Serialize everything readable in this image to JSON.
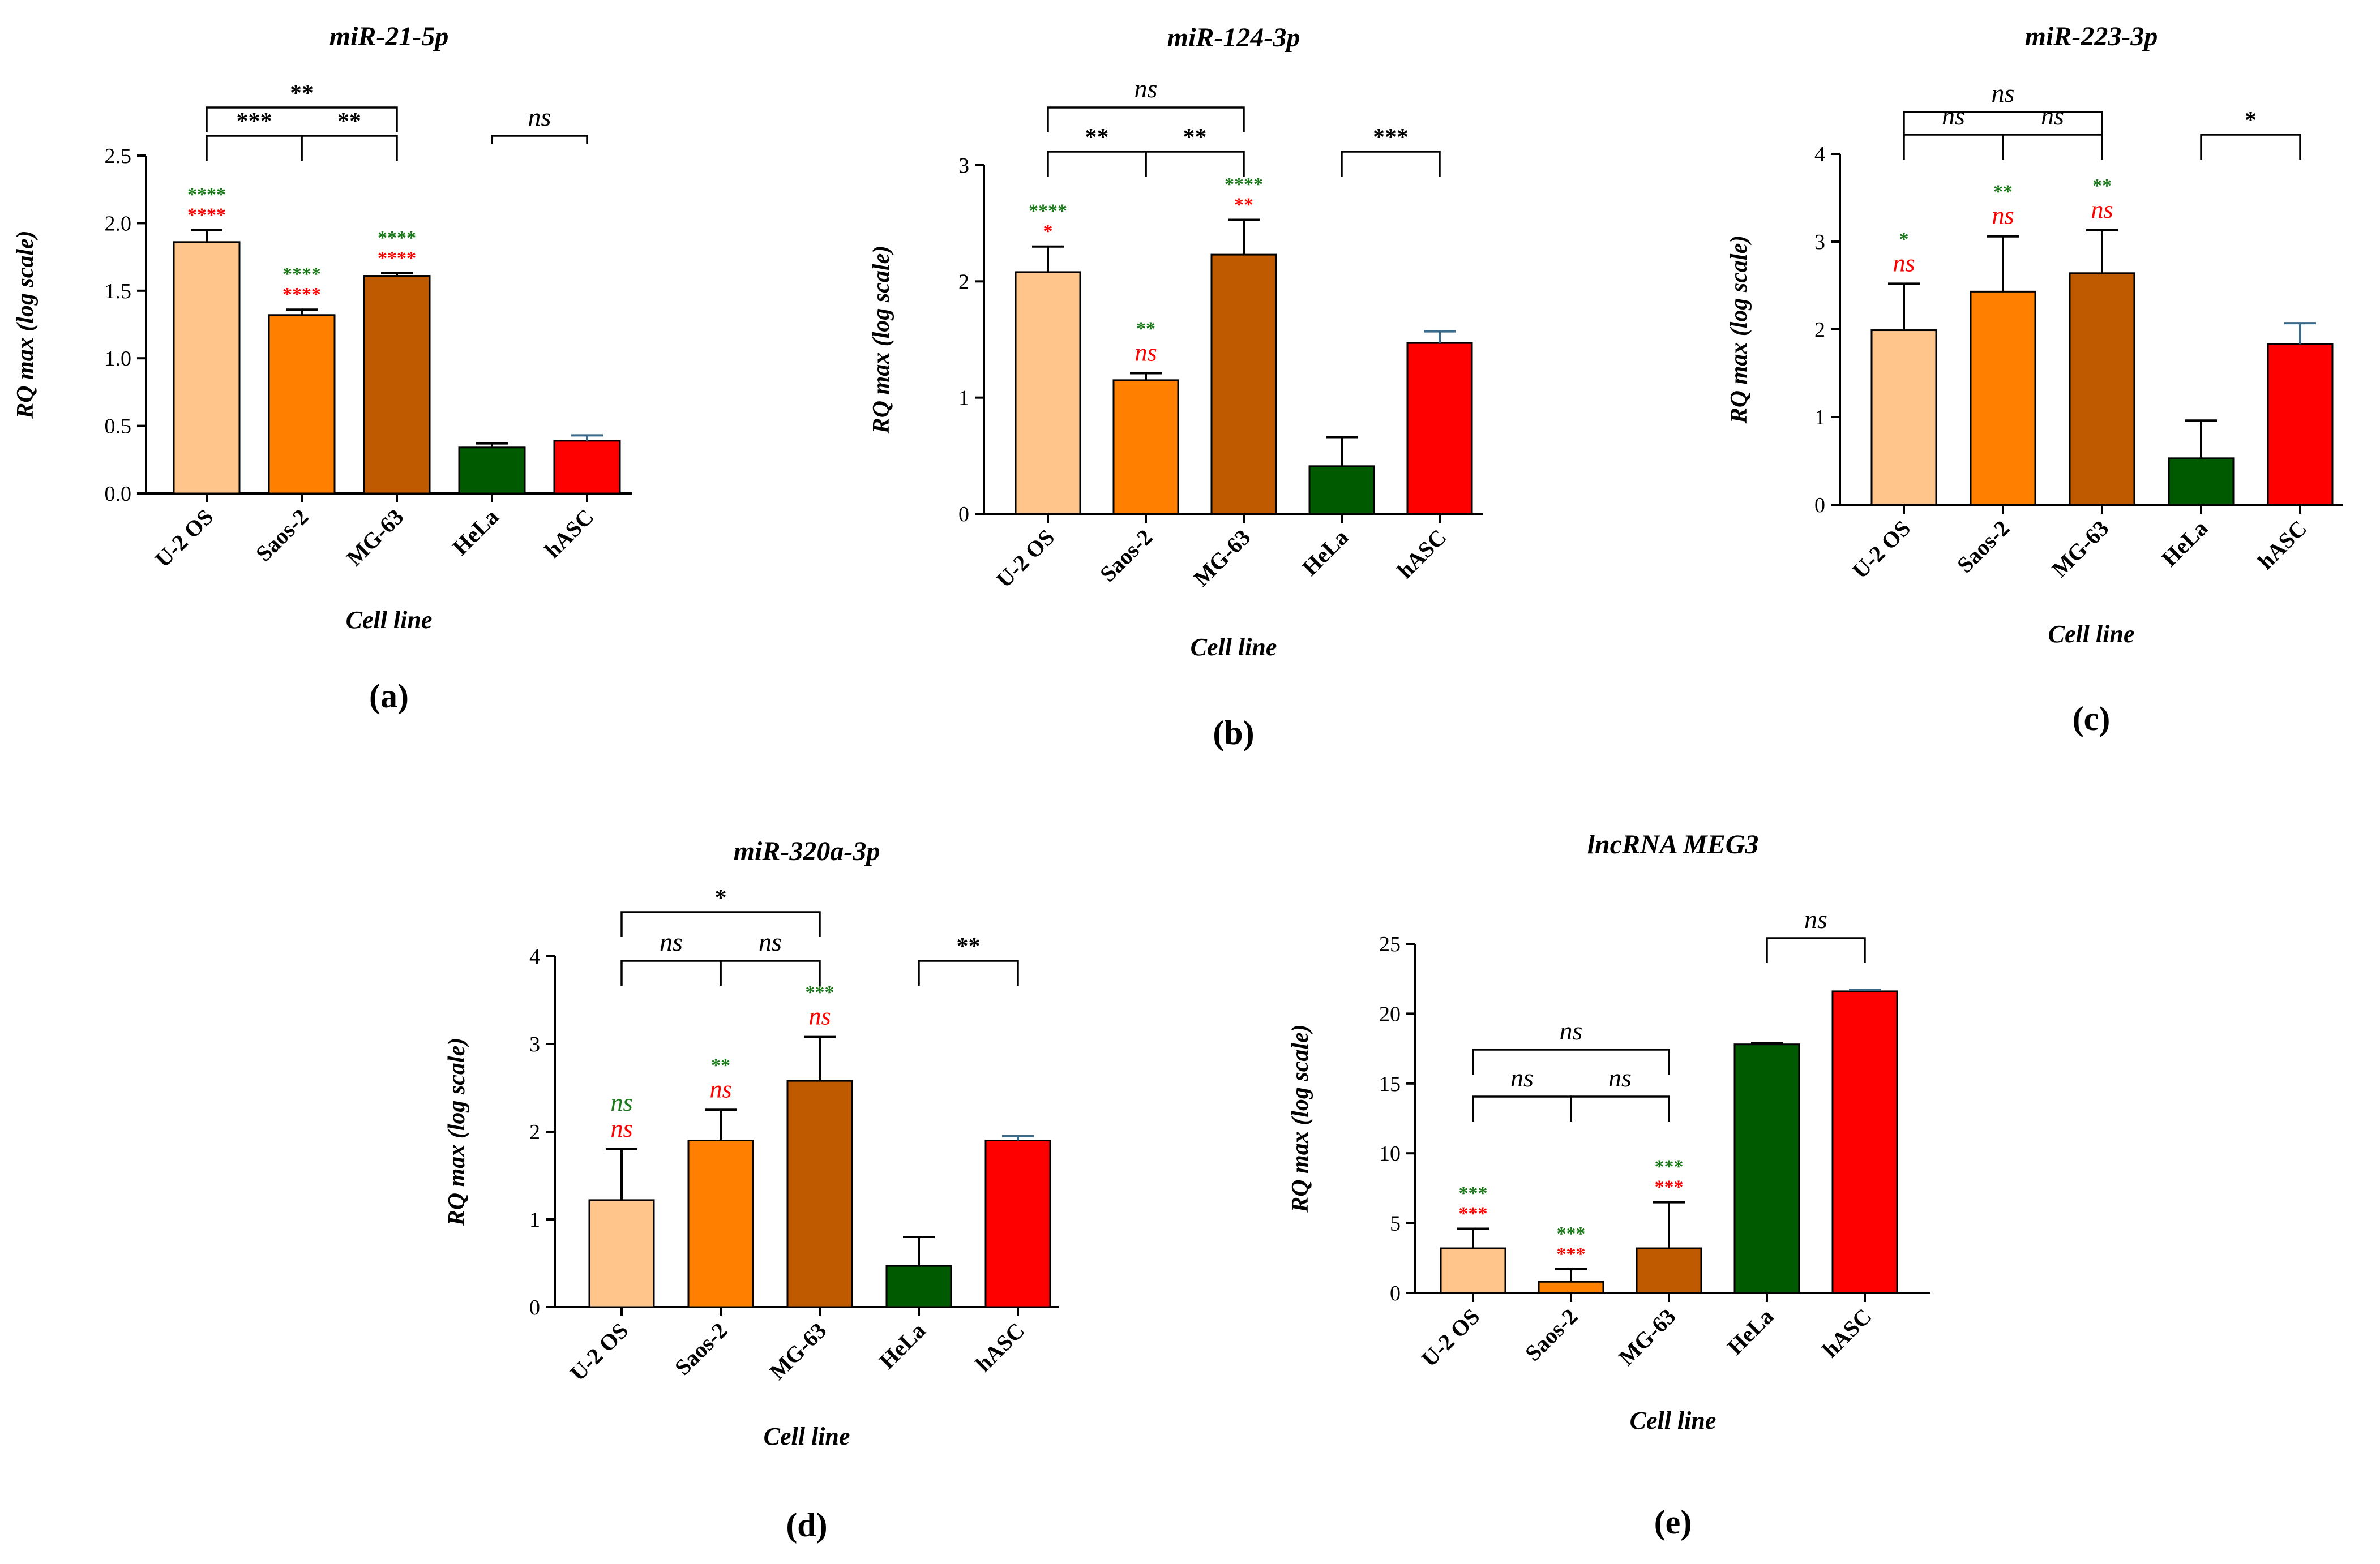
{
  "chart_data": [
    {
      "type": "bar",
      "panel": "(a)",
      "title": "miR-21-5p",
      "xlabel": "Cell line",
      "ylabel": "RQ max (log scale)",
      "ylim": [
        0,
        2.5
      ],
      "yticks": [
        "0.0",
        "0.5",
        "1.0",
        "1.5",
        "2.0",
        "2.5"
      ],
      "ytick_values": [
        0,
        0.5,
        1.0,
        1.5,
        2.0,
        2.5
      ],
      "categories": [
        "U-2 OS",
        "Saos-2",
        "MG-63",
        "HeLa",
        "hASC"
      ],
      "values": [
        1.86,
        1.32,
        1.61,
        0.34,
        0.39
      ],
      "errors": [
        0.09,
        0.04,
        0.02,
        0.03,
        0.04
      ],
      "colors": [
        "#FFC58A",
        "#FF8000",
        "#C05A00",
        "#005A00",
        "#FF0000"
      ],
      "brackets": [
        {
          "from": 0,
          "to": 2,
          "label": "**",
          "level": 2
        },
        {
          "from": 0,
          "to": 1,
          "label": "***",
          "level": 1
        },
        {
          "from": 1,
          "to": 2,
          "label": "**",
          "level": 1
        },
        {
          "from": 3,
          "to": 4,
          "label": "ns",
          "level": 1,
          "style": "line"
        }
      ],
      "marks": [
        {
          "index": 0,
          "green": "****",
          "red": "****"
        },
        {
          "index": 1,
          "green": "****",
          "red": "****"
        },
        {
          "index": 2,
          "green": "****",
          "red": "****"
        }
      ]
    },
    {
      "type": "bar",
      "panel": "(b)",
      "title": "miR-124-3p",
      "xlabel": "Cell line",
      "ylabel": "RQ max (log scale)",
      "ylim": [
        0,
        3
      ],
      "yticks": [
        "0",
        "1",
        "2",
        "3"
      ],
      "ytick_values": [
        0,
        1,
        2,
        3
      ],
      "categories": [
        "U-2 OS",
        "Saos-2",
        "MG-63",
        "HeLa",
        "hASC"
      ],
      "values": [
        2.08,
        1.15,
        2.23,
        0.41,
        1.47
      ],
      "errors": [
        0.22,
        0.06,
        0.3,
        0.25,
        0.1
      ],
      "colors": [
        "#FFC58A",
        "#FF8000",
        "#C05A00",
        "#005A00",
        "#FF0000"
      ],
      "brackets": [
        {
          "from": 0,
          "to": 2,
          "label": "ns",
          "level": 2
        },
        {
          "from": 0,
          "to": 1,
          "label": "**",
          "level": 1
        },
        {
          "from": 1,
          "to": 2,
          "label": "**",
          "level": 1
        },
        {
          "from": 3,
          "to": 4,
          "label": "***",
          "level": 1
        }
      ],
      "marks": [
        {
          "index": 0,
          "green": "****",
          "red": "*"
        },
        {
          "index": 1,
          "green": "**",
          "red": "ns"
        },
        {
          "index": 2,
          "green": "****",
          "red": "**"
        }
      ]
    },
    {
      "type": "bar",
      "panel": "(c)",
      "title": "miR-223-3p",
      "xlabel": "Cell line",
      "ylabel": "RQ max (log scale)",
      "ylim": [
        0,
        4
      ],
      "yticks": [
        "0",
        "1",
        "2",
        "3",
        "4"
      ],
      "ytick_values": [
        0,
        1,
        2,
        3,
        4
      ],
      "categories": [
        "U-2 OS",
        "Saos-2",
        "MG-63",
        "HeLa",
        "hASC"
      ],
      "values": [
        1.99,
        2.43,
        2.64,
        0.53,
        1.83
      ],
      "errors": [
        0.53,
        0.63,
        0.49,
        0.43,
        0.24
      ],
      "colors": [
        "#FFC58A",
        "#FF8000",
        "#C05A00",
        "#005A00",
        "#FF0000"
      ],
      "brackets": [
        {
          "from": 0,
          "to": 2,
          "label": "ns",
          "level": 2
        },
        {
          "from": 0,
          "to": 1,
          "label": "ns",
          "level": 1
        },
        {
          "from": 1,
          "to": 2,
          "label": "ns",
          "level": 1
        },
        {
          "from": 3,
          "to": 4,
          "label": "*",
          "level": 1
        }
      ],
      "marks": [
        {
          "index": 0,
          "green": "*",
          "red": "ns"
        },
        {
          "index": 1,
          "green": "**",
          "red": "ns"
        },
        {
          "index": 2,
          "green": "**",
          "red": "ns"
        }
      ]
    },
    {
      "type": "bar",
      "panel": "(d)",
      "title": "miR-320a-3p",
      "xlabel": "Cell line",
      "ylabel": "RQ max (log scale)",
      "ylim": [
        0,
        4
      ],
      "yticks": [
        "0",
        "1",
        "2",
        "3",
        "4"
      ],
      "ytick_values": [
        0,
        1,
        2,
        3,
        4
      ],
      "categories": [
        "U-2 OS",
        "Saos-2",
        "MG-63",
        "HeLa",
        "hASC"
      ],
      "values": [
        1.22,
        1.9,
        2.58,
        0.47,
        1.9
      ],
      "errors": [
        0.58,
        0.35,
        0.5,
        0.33,
        0.05
      ],
      "colors": [
        "#FFC58A",
        "#FF8000",
        "#C05A00",
        "#005A00",
        "#FF0000"
      ],
      "brackets": [
        {
          "from": 0,
          "to": 2,
          "label": "*",
          "level": 2
        },
        {
          "from": 0,
          "to": 1,
          "label": "ns",
          "level": 1
        },
        {
          "from": 1,
          "to": 2,
          "label": "ns",
          "level": 1
        },
        {
          "from": 3,
          "to": 4,
          "label": "**",
          "level": 1
        }
      ],
      "marks": [
        {
          "index": 0,
          "green": "ns",
          "red": "ns"
        },
        {
          "index": 1,
          "green": "**",
          "red": "ns"
        },
        {
          "index": 2,
          "green": "***",
          "red": "ns"
        }
      ]
    },
    {
      "type": "bar",
      "panel": "(e)",
      "title": "lncRNA MEG3",
      "xlabel": "Cell line",
      "ylabel": "RQ max (log scale)",
      "ylim": [
        0,
        25
      ],
      "yticks": [
        "0",
        "5",
        "10",
        "15",
        "20",
        "25"
      ],
      "ytick_values": [
        0,
        5,
        10,
        15,
        20,
        25
      ],
      "categories": [
        "U-2 OS",
        "Saos-2",
        "MG-63",
        "HeLa",
        "hASC"
      ],
      "values": [
        3.2,
        0.8,
        3.2,
        17.8,
        21.6
      ],
      "errors": [
        1.4,
        0.9,
        3.3,
        0.1,
        0.1
      ],
      "colors": [
        "#FFC58A",
        "#FF8000",
        "#C05A00",
        "#005A00",
        "#FF0000"
      ],
      "brackets": [
        {
          "from": 0,
          "to": 2,
          "label": "ns",
          "level": 2
        },
        {
          "from": 0,
          "to": 1,
          "label": "ns",
          "level": 1
        },
        {
          "from": 1,
          "to": 2,
          "label": "ns",
          "level": 1
        },
        {
          "from": 3,
          "to": 4,
          "label": "ns",
          "level": 1
        }
      ],
      "marks": [
        {
          "index": 0,
          "green": "***",
          "red": "***"
        },
        {
          "index": 1,
          "green": "***",
          "red": "***"
        },
        {
          "index": 2,
          "green": "***",
          "red": "***"
        }
      ]
    }
  ],
  "colors": {
    "green_mark": "#1A7A1A",
    "red_mark": "#FF0000",
    "axis": "#000000"
  }
}
